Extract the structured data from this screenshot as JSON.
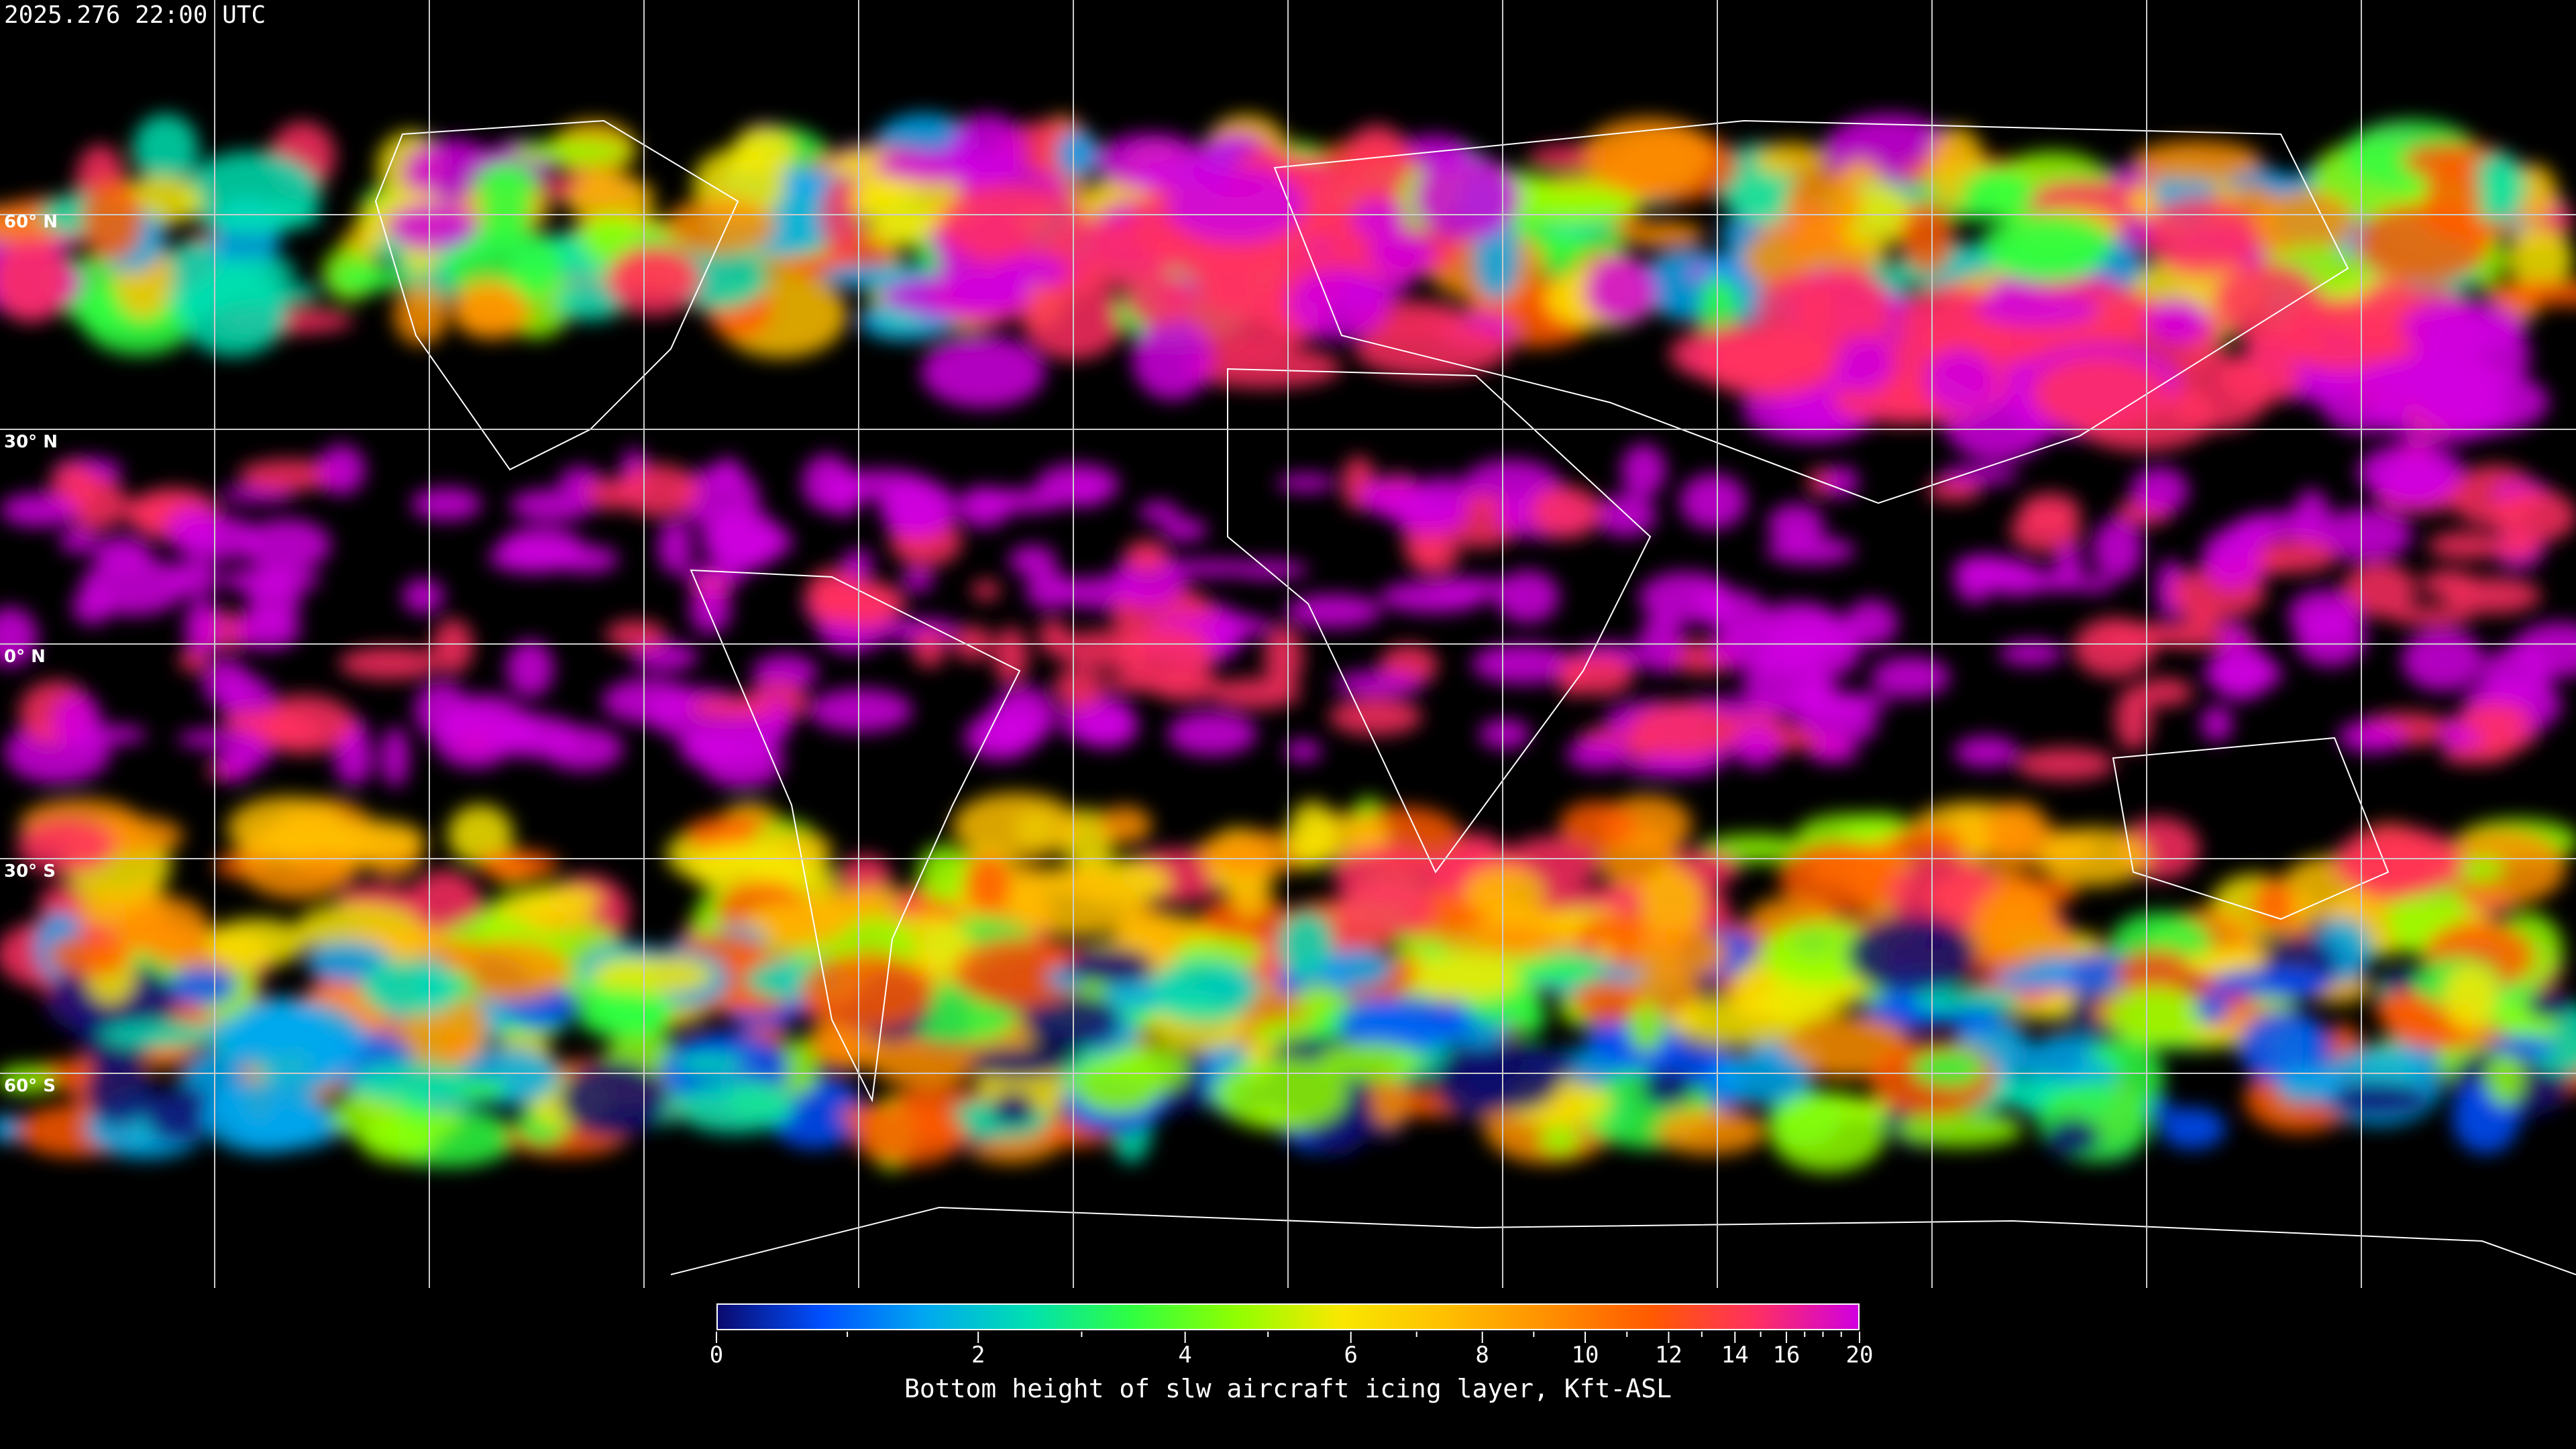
{
  "timestamp": "2025.276 22:00 UTC",
  "map": {
    "projection": "equirectangular",
    "graticule_spacing_deg": 30,
    "background": "#000000",
    "gridline_color": "#cccccc",
    "coastline_color": "#ffffff",
    "lat_labels": [
      "60° N",
      "30° N",
      "0° N",
      "30° S",
      "60° S"
    ]
  },
  "colorbar": {
    "title": "Bottom height of slw aircraft icing layer, Kft-ASL",
    "min": 0,
    "max": 20,
    "tick_labels": [
      "0",
      "2",
      "4",
      "6",
      "8",
      "10",
      "12",
      "14",
      "16",
      "20"
    ],
    "minor_ticks": [
      1,
      3,
      5,
      7,
      9,
      11,
      13,
      15,
      17,
      18,
      19
    ],
    "colors": [
      "#0a0a6e",
      "#0050ff",
      "#00a8f0",
      "#00e0b0",
      "#30ff40",
      "#90ff00",
      "#f8e800",
      "#ffc000",
      "#ff9000",
      "#ff5a00",
      "#ff3060",
      "#d000e0"
    ]
  }
}
